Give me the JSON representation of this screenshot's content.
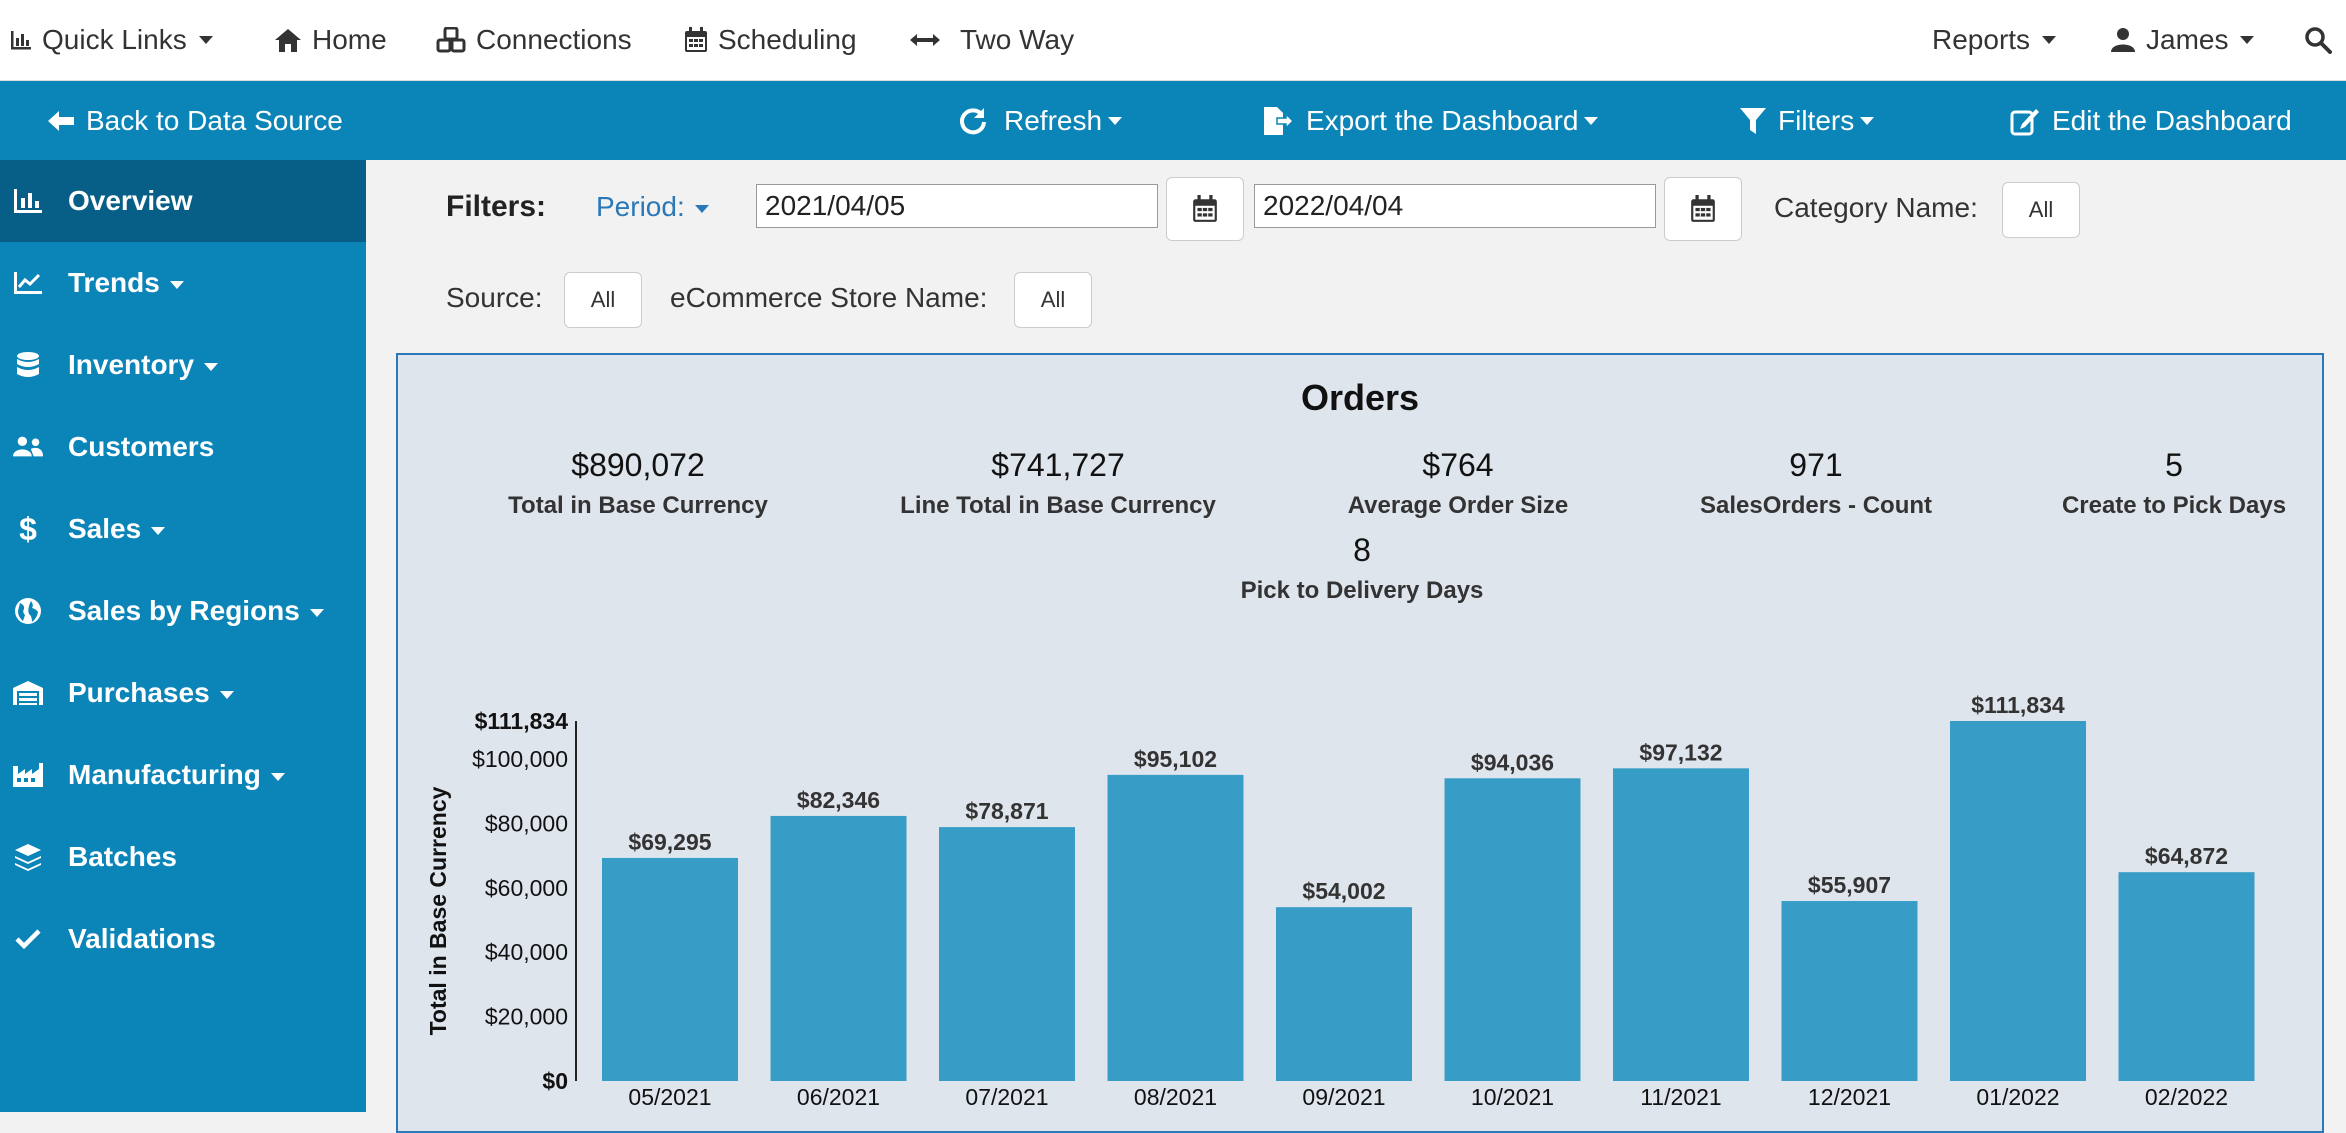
{
  "topnav": {
    "quick_links": "Quick Links",
    "home": "Home",
    "connections": "Connections",
    "scheduling": "Scheduling",
    "two_way": "Two Way",
    "reports": "Reports",
    "user": "James"
  },
  "toolbar": {
    "back": "Back to Data Source",
    "refresh": "Refresh",
    "export": "Export the Dashboard",
    "filters": "Filters",
    "edit": "Edit the Dashboard"
  },
  "sidebar": {
    "items": [
      {
        "label": "Overview",
        "icon": "bar-chart-icon"
      },
      {
        "label": "Trends",
        "icon": "line-chart-icon"
      },
      {
        "label": "Inventory",
        "icon": "database-icon"
      },
      {
        "label": "Customers",
        "icon": "users-icon"
      },
      {
        "label": "Sales",
        "icon": "dollar-icon"
      },
      {
        "label": "Sales by Regions",
        "icon": "globe-icon"
      },
      {
        "label": "Purchases",
        "icon": "warehouse-icon"
      },
      {
        "label": "Manufacturing",
        "icon": "industry-icon"
      },
      {
        "label": "Batches",
        "icon": "layers-icon"
      },
      {
        "label": "Validations",
        "icon": "check-icon"
      }
    ]
  },
  "filters": {
    "label": "Filters:",
    "period": "Period:",
    "start_date": "2021/04/05",
    "end_date": "2022/04/04",
    "category_label": "Category Name:",
    "category_value": "All",
    "source_label": "Source:",
    "source_value": "All",
    "store_label": "eCommerce Store Name:",
    "store_value": "All"
  },
  "panel": {
    "title": "Orders",
    "kpis": [
      {
        "value": "$890,072",
        "label": "Total in Base Currency"
      },
      {
        "value": "$741,727",
        "label": "Line Total in Base Currency"
      },
      {
        "value": "$764",
        "label": "Average Order Size"
      },
      {
        "value": "971",
        "label": "SalesOrders - Count"
      },
      {
        "value": "5",
        "label": "Create to Pick Days"
      },
      {
        "value": "8",
        "label": "Pick to Delivery Days"
      }
    ]
  },
  "colors": {
    "brand": "#0b84b8",
    "sidebar_active": "#075f87",
    "bar": "#389dc6",
    "panel_bg": "#dfe5ec"
  },
  "chart_data": {
    "type": "bar",
    "categories": [
      "05/2021",
      "06/2021",
      "07/2021",
      "08/2021",
      "09/2021",
      "10/2021",
      "11/2021",
      "12/2021",
      "01/2022",
      "02/2022"
    ],
    "values": [
      69295,
      82346,
      78871,
      95102,
      54002,
      94036,
      97132,
      55907,
      111834,
      64872
    ],
    "data_labels": [
      "$69,295",
      "$82,346",
      "$78,871",
      "$95,102",
      "$54,002",
      "$94,036",
      "$97,132",
      "$55,907",
      "$111,834",
      "$64,872"
    ],
    "ylabel": "Total in Base Currency",
    "ylim": [
      0,
      111834
    ],
    "yticks": [
      0,
      20000,
      40000,
      60000,
      80000,
      100000,
      111834
    ],
    "ytick_labels": [
      "$0",
      "$20,000",
      "$40,000",
      "$60,000",
      "$80,000",
      "$100,000",
      "$111,834"
    ],
    "grid": false
  }
}
